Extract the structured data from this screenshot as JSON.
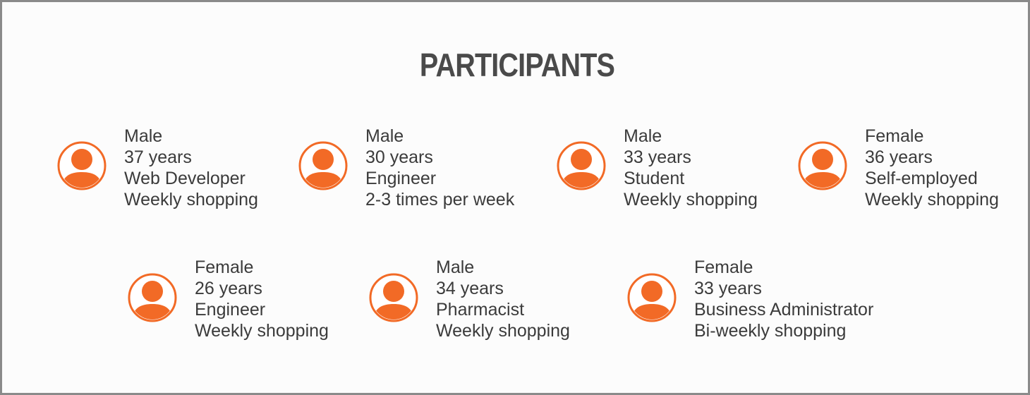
{
  "title": "PARTICIPANTS",
  "accent_color": "#f26a26",
  "icon": "person-avatar-icon",
  "participants": [
    {
      "gender": "Male",
      "age": "37 years",
      "occupation": "Web Developer",
      "shopping": "Weekly shopping"
    },
    {
      "gender": "Male",
      "age": "30 years",
      "occupation": "Engineer",
      "shopping": "2-3 times per week"
    },
    {
      "gender": "Male",
      "age": "33 years",
      "occupation": "Student",
      "shopping": "Weekly shopping"
    },
    {
      "gender": "Female",
      "age": "36 years",
      "occupation": "Self-employed",
      "shopping": "Weekly shopping"
    },
    {
      "gender": "Female",
      "age": "26 years",
      "occupation": "Engineer",
      "shopping": "Weekly shopping"
    },
    {
      "gender": "Male",
      "age": "34 years",
      "occupation": "Pharmacist",
      "shopping": "Weekly shopping"
    },
    {
      "gender": "Female",
      "age": "33 years",
      "occupation": "Business Administrator",
      "shopping": "Bi-weekly shopping"
    }
  ]
}
